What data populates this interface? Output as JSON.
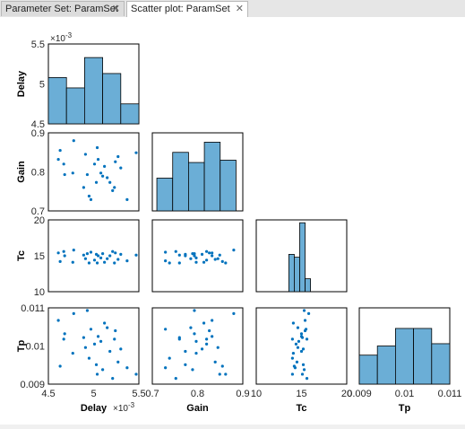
{
  "tabs": [
    {
      "label": "Parameter Set: ParamSet",
      "active": false
    },
    {
      "label": "Scatter plot: ParamSet",
      "active": true
    }
  ],
  "colors": {
    "marker": "#0072bd",
    "bar": "#6baed6",
    "bar_edge": "#000000",
    "axes": "#000000"
  },
  "chart_data": {
    "type": "scatter",
    "title": "",
    "variables": [
      {
        "name": "Delay",
        "range": [
          0.0045,
          0.0055
        ],
        "ticks": [
          "4.5",
          "5",
          "5.5"
        ],
        "exponent_label": "×10",
        "exponent": "-3"
      },
      {
        "name": "Gain",
        "range": [
          0.7,
          0.9
        ],
        "ticks": [
          "0.7",
          "0.8",
          "0.9"
        ]
      },
      {
        "name": "Tc",
        "range": [
          10,
          20
        ],
        "ticks": [
          "10",
          "15",
          "20"
        ]
      },
      {
        "name": "Tp",
        "range": [
          0.009,
          0.011
        ],
        "ticks": [
          "0.009",
          "0.01",
          "0.011"
        ],
        "x_ticks": [
          "0.009",
          "0.01",
          "0.011"
        ]
      }
    ],
    "histograms": {
      "Delay": {
        "edges": [
          0.0045,
          0.0047,
          0.0049,
          0.0051,
          0.0053,
          0.0055
        ],
        "rel_heights": [
          0.58,
          0.45,
          0.83,
          0.63,
          0.25
        ]
      },
      "Gain": {
        "edges": [
          0.71,
          0.745,
          0.78,
          0.815,
          0.85,
          0.885
        ],
        "rel_heights": [
          0.42,
          0.75,
          0.62,
          0.88,
          0.65
        ]
      },
      "Tc": {
        "edges": [
          13.6,
          14.2,
          14.8,
          15.4,
          16.0
        ],
        "rel_heights": [
          0.52,
          0.48,
          0.96,
          0.18
        ]
      },
      "Tp": {
        "edges": [
          0.009,
          0.0094,
          0.0098,
          0.0102,
          0.0106,
          0.011
        ],
        "rel_heights": [
          0.38,
          0.5,
          0.73,
          0.73,
          0.53
        ]
      }
    },
    "samples": [
      {
        "Delay": 0.00461,
        "Gain": 0.832,
        "Tc": 15.4,
        "Tp": 0.01067
      },
      {
        "Delay": 0.00463,
        "Gain": 0.855,
        "Tc": 14.2,
        "Tp": 0.00947
      },
      {
        "Delay": 0.00467,
        "Gain": 0.82,
        "Tc": 15.6,
        "Tp": 0.01018
      },
      {
        "Delay": 0.00468,
        "Gain": 0.793,
        "Tc": 15.0,
        "Tp": 0.01032
      },
      {
        "Delay": 0.00477,
        "Gain": 0.797,
        "Tc": 14.1,
        "Tp": 0.00981
      },
      {
        "Delay": 0.00478,
        "Gain": 0.88,
        "Tc": 15.8,
        "Tp": 0.01085
      },
      {
        "Delay": 0.00489,
        "Gain": 0.76,
        "Tc": 15.1,
        "Tp": 0.01022
      },
      {
        "Delay": 0.00491,
        "Gain": 0.845,
        "Tc": 14.6,
        "Tp": 0.00996
      },
      {
        "Delay": 0.00493,
        "Gain": 0.793,
        "Tc": 15.3,
        "Tp": 0.01093
      },
      {
        "Delay": 0.00495,
        "Gain": 0.738,
        "Tc": 14.0,
        "Tp": 0.00968
      },
      {
        "Delay": 0.00497,
        "Gain": 0.729,
        "Tc": 15.5,
        "Tp": 0.01044
      },
      {
        "Delay": 0.00501,
        "Gain": 0.82,
        "Tc": 14.4,
        "Tp": 0.01005
      },
      {
        "Delay": 0.00503,
        "Gain": 0.773,
        "Tc": 15.2,
        "Tp": 0.00951
      },
      {
        "Delay": 0.00504,
        "Gain": 0.862,
        "Tc": 14.0,
        "Tp": 0.00926
      },
      {
        "Delay": 0.00505,
        "Gain": 0.832,
        "Tc": 15.0,
        "Tp": 0.01025
      },
      {
        "Delay": 0.00508,
        "Gain": 0.797,
        "Tc": 14.7,
        "Tp": 0.01012
      },
      {
        "Delay": 0.0051,
        "Gain": 0.789,
        "Tc": 15.3,
        "Tp": 0.00938
      },
      {
        "Delay": 0.00512,
        "Gain": 0.814,
        "Tc": 14.1,
        "Tp": 0.0106
      },
      {
        "Delay": 0.00515,
        "Gain": 0.785,
        "Tc": 14.6,
        "Tp": 0.01048
      },
      {
        "Delay": 0.00518,
        "Gain": 0.773,
        "Tc": 15.0,
        "Tp": 0.00986
      },
      {
        "Delay": 0.00521,
        "Gain": 0.752,
        "Tc": 15.6,
        "Tp": 0.00915
      },
      {
        "Delay": 0.00523,
        "Gain": 0.76,
        "Tc": 14.0,
        "Tp": 0.01018
      },
      {
        "Delay": 0.00524,
        "Gain": 0.826,
        "Tc": 15.4,
        "Tp": 0.0104
      },
      {
        "Delay": 0.00527,
        "Gain": 0.839,
        "Tc": 14.5,
        "Tp": 0.00958
      },
      {
        "Delay": 0.0053,
        "Gain": 0.81,
        "Tc": 15.2,
        "Tp": 0.00992
      },
      {
        "Delay": 0.00537,
        "Gain": 0.729,
        "Tc": 14.3,
        "Tp": 0.00943
      },
      {
        "Delay": 0.00547,
        "Gain": 0.849,
        "Tc": 15.1,
        "Tp": 0.00926
      }
    ]
  }
}
